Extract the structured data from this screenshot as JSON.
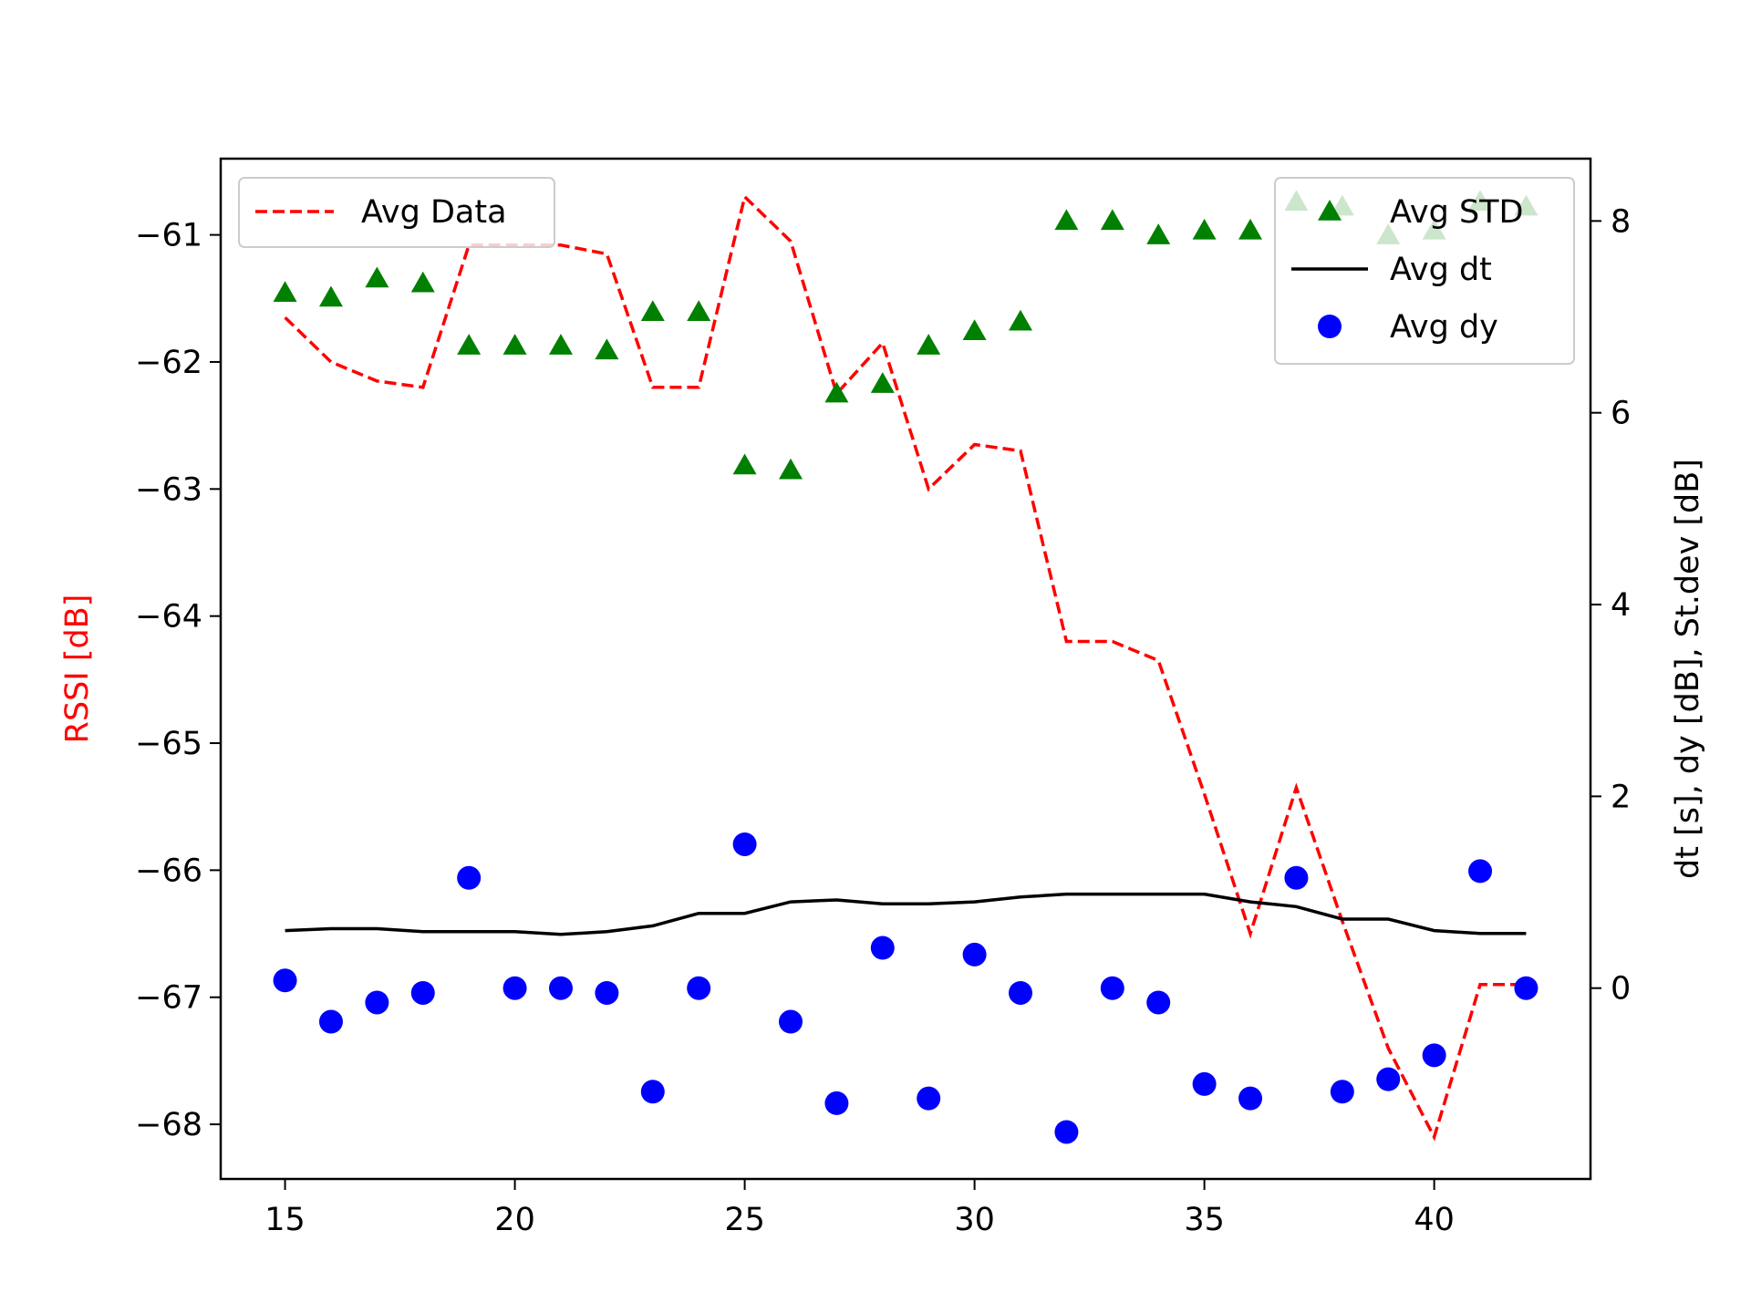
{
  "chart_data": {
    "type": "line",
    "x": [
      15,
      16,
      17,
      18,
      19,
      20,
      21,
      22,
      23,
      24,
      25,
      26,
      27,
      28,
      29,
      30,
      31,
      32,
      33,
      34,
      35,
      36,
      37,
      38,
      39,
      40,
      41,
      42
    ],
    "xlim": [
      13.6,
      43.4
    ],
    "xticks": [
      15,
      20,
      25,
      30,
      35,
      40
    ],
    "left_axis": {
      "label": "RSSI [dB]",
      "label_color": "#ff0000",
      "ylim": [
        -68.43,
        -60.4
      ],
      "ticks": [
        -61,
        -62,
        -63,
        -64,
        -65,
        -66,
        -67,
        -68
      ],
      "tick_labels": [
        "−61",
        "−62",
        "−63",
        "−64",
        "−65",
        "−66",
        "−67",
        "−68"
      ]
    },
    "right_axis": {
      "label": "dt [s], dy [dB], St.dev [dB]",
      "ylim": [
        -1.99,
        8.65
      ],
      "ticks": [
        0,
        2,
        4,
        6,
        8
      ],
      "tick_labels": [
        "0",
        "2",
        "4",
        "6",
        "8"
      ]
    },
    "series": [
      {
        "name": "Avg Data",
        "axis": "left",
        "style": "dashed-line",
        "color": "#ff0000",
        "values": [
          -61.65,
          -62.0,
          -62.15,
          -62.2,
          -61.08,
          -61.08,
          -61.08,
          -61.15,
          -62.2,
          -62.2,
          -60.7,
          -61.05,
          -62.25,
          -61.85,
          -63.0,
          -62.65,
          -62.7,
          -64.2,
          -64.2,
          -64.35,
          -65.4,
          -66.5,
          -65.35,
          -66.4,
          -67.4,
          -68.1,
          -66.9,
          -66.9
        ]
      },
      {
        "name": "Avg STD",
        "axis": "right",
        "style": "triangle-markers",
        "color": "#008000",
        "values": [
          7.25,
          7.2,
          7.4,
          7.35,
          6.7,
          6.7,
          6.7,
          6.65,
          7.05,
          7.05,
          5.45,
          5.4,
          6.2,
          6.3,
          6.7,
          6.85,
          6.95,
          8.0,
          8.0,
          7.85,
          7.9,
          7.9,
          8.2,
          8.15,
          7.85,
          7.9,
          8.2,
          8.15
        ]
      },
      {
        "name": "Avg dt",
        "axis": "right",
        "style": "solid-line",
        "color": "#000000",
        "values": [
          0.6,
          0.62,
          0.62,
          0.59,
          0.59,
          0.59,
          0.56,
          0.59,
          0.65,
          0.78,
          0.78,
          0.9,
          0.92,
          0.88,
          0.88,
          0.9,
          0.95,
          0.98,
          0.98,
          0.98,
          0.98,
          0.9,
          0.85,
          0.72,
          0.72,
          0.6,
          0.57,
          0.57
        ]
      },
      {
        "name": "Avg dy",
        "axis": "right",
        "style": "circle-markers",
        "color": "#0000ff",
        "values": [
          0.08,
          -0.35,
          -0.15,
          -0.05,
          1.15,
          0.0,
          0.0,
          -0.05,
          -1.08,
          0.0,
          1.5,
          -0.35,
          -1.2,
          0.42,
          -1.15,
          0.35,
          -0.05,
          -1.5,
          0.0,
          -0.15,
          -1.0,
          -1.15,
          1.15,
          -1.08,
          -0.95,
          -0.7,
          1.22,
          0.0
        ]
      }
    ],
    "legends": [
      {
        "position": "upper-left",
        "entries": [
          "Avg Data"
        ]
      },
      {
        "position": "upper-right",
        "entries": [
          "Avg STD",
          "Avg dt",
          "Avg dy"
        ]
      }
    ],
    "grid": false
  }
}
